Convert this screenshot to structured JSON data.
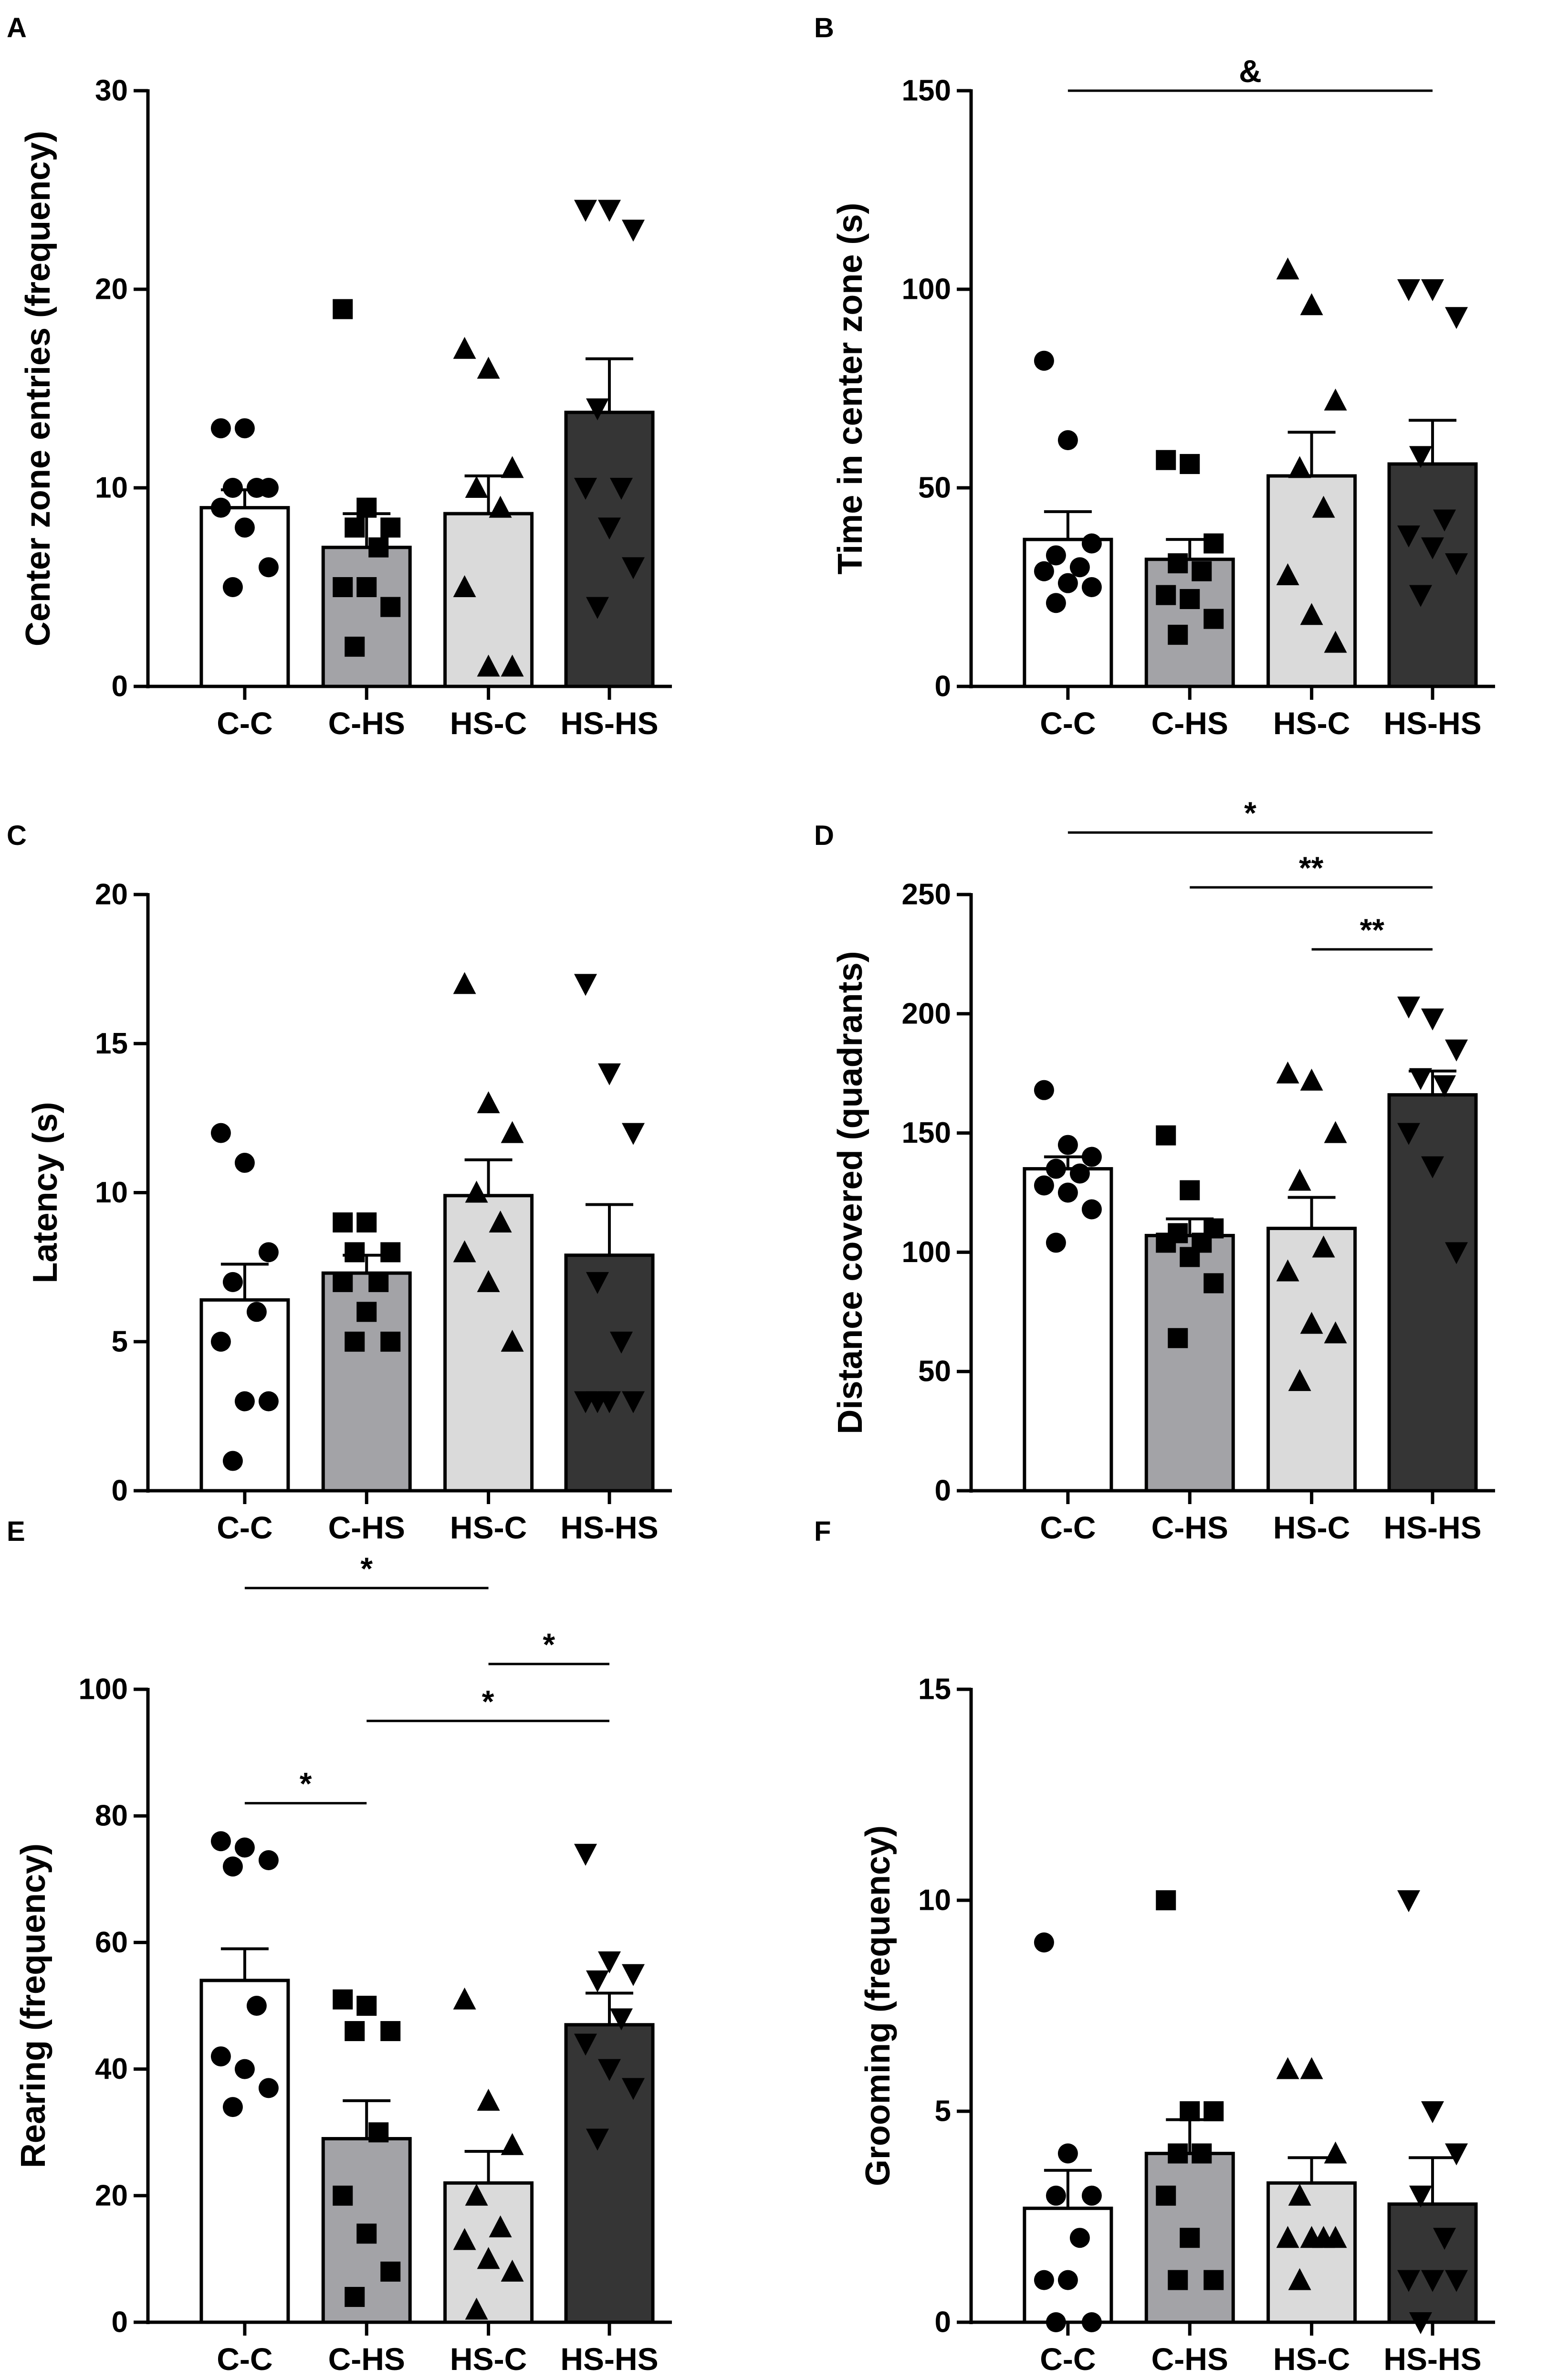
{
  "colors": {
    "C-C": "#ffffff",
    "C-HS": "#a3a3a7",
    "HS-C": "#dadada",
    "HS-HS": "#353535",
    "axis": "#000000"
  },
  "chart_data": [
    {
      "panel": "A",
      "type": "bar",
      "ylabel": "Center zone entries (frequency)",
      "ylim": [
        0,
        30
      ],
      "yticks": [
        0,
        10,
        20,
        30
      ],
      "categories": [
        "C-C",
        "C-HS",
        "HS-C",
        "HS-HS"
      ],
      "means": [
        9.0,
        7.0,
        8.7,
        13.8
      ],
      "sem": [
        0.9,
        1.7,
        1.9,
        2.7
      ],
      "points": [
        {
          "marker": "circle",
          "values": [
            13,
            13,
            10,
            10,
            10,
            9,
            8,
            6,
            5
          ]
        },
        {
          "marker": "square",
          "values": [
            19,
            9,
            8,
            8,
            7,
            5,
            5,
            4,
            2
          ]
        },
        {
          "marker": "triangle-up",
          "values": [
            17,
            16,
            11,
            10,
            9,
            5,
            1,
            1
          ]
        },
        {
          "marker": "triangle-down",
          "values": [
            24,
            24,
            23,
            14,
            10,
            10,
            8,
            6,
            4
          ]
        }
      ],
      "significance": []
    },
    {
      "panel": "B",
      "type": "bar",
      "ylabel": "Time in center zone (s)",
      "ylim": [
        0,
        150
      ],
      "yticks": [
        0,
        50,
        100,
        150
      ],
      "categories": [
        "C-C",
        "C-HS",
        "HS-C",
        "HS-HS"
      ],
      "means": [
        37,
        32,
        53,
        56
      ],
      "sem": [
        7,
        5,
        11,
        11
      ],
      "points": [
        {
          "marker": "circle",
          "values": [
            82,
            62,
            36,
            33,
            30,
            29,
            26,
            25,
            21
          ]
        },
        {
          "marker": "square",
          "values": [
            57,
            56,
            36,
            31,
            29,
            23,
            22,
            17,
            13
          ]
        },
        {
          "marker": "triangle-up",
          "values": [
            105,
            96,
            72,
            55,
            45,
            28,
            18,
            11
          ]
        },
        {
          "marker": "triangle-down",
          "values": [
            100,
            100,
            93,
            58,
            42,
            38,
            35,
            31,
            23
          ]
        }
      ],
      "significance": [
        {
          "from": 0,
          "to": 3,
          "label": "&",
          "level": 150
        }
      ]
    },
    {
      "panel": "C",
      "type": "bar",
      "ylabel": "Latency (s)",
      "ylim": [
        0,
        20
      ],
      "yticks": [
        0,
        5,
        10,
        15,
        20
      ],
      "categories": [
        "C-C",
        "C-HS",
        "HS-C",
        "HS-HS"
      ],
      "means": [
        6.4,
        7.3,
        9.9,
        7.9
      ],
      "sem": [
        1.2,
        0.6,
        1.2,
        1.7
      ],
      "points": [
        {
          "marker": "circle",
          "values": [
            12,
            11,
            8,
            7,
            6,
            5,
            3,
            3,
            1
          ]
        },
        {
          "marker": "square",
          "values": [
            9,
            9,
            8,
            8,
            7,
            7,
            6,
            5,
            5
          ]
        },
        {
          "marker": "triangle-up",
          "values": [
            17,
            13,
            12,
            10,
            9,
            8,
            7,
            5
          ]
        },
        {
          "marker": "triangle-down",
          "values": [
            17,
            14,
            12,
            7,
            5,
            3,
            3,
            3,
            3
          ]
        }
      ],
      "significance": []
    },
    {
      "panel": "D",
      "type": "bar",
      "ylabel": "Distance covered (quadrants)",
      "ylim": [
        0,
        250
      ],
      "yticks": [
        0,
        50,
        100,
        150,
        200,
        250
      ],
      "categories": [
        "C-C",
        "C-HS",
        "HS-C",
        "HS-HS"
      ],
      "means": [
        135,
        107,
        110,
        166
      ],
      "sem": [
        5,
        7,
        13,
        10
      ],
      "points": [
        {
          "marker": "circle",
          "values": [
            168,
            145,
            140,
            135,
            133,
            128,
            125,
            118,
            104
          ]
        },
        {
          "marker": "square",
          "values": [
            149,
            126,
            110,
            108,
            104,
            104,
            98,
            87,
            64
          ]
        },
        {
          "marker": "triangle-up",
          "values": [
            175,
            172,
            150,
            130,
            102,
            92,
            70,
            66,
            46
          ]
        },
        {
          "marker": "triangle-down",
          "values": [
            203,
            198,
            185,
            173,
            170,
            150,
            136,
            100
          ]
        }
      ],
      "significance": [
        {
          "from": 0,
          "to": 3,
          "label": "*",
          "level": 276
        },
        {
          "from": 1,
          "to": 3,
          "label": "**",
          "level": 253
        },
        {
          "from": 2,
          "to": 3,
          "label": "**",
          "level": 227
        }
      ]
    },
    {
      "panel": "E",
      "type": "bar",
      "ylabel": "Rearing (frequency)",
      "ylim": [
        0,
        100
      ],
      "yticks": [
        0,
        20,
        40,
        60,
        80,
        100
      ],
      "categories": [
        "C-C",
        "C-HS",
        "HS-C",
        "HS-HS"
      ],
      "means": [
        54,
        29,
        22,
        47
      ],
      "sem": [
        5,
        6,
        5,
        5
      ],
      "points": [
        {
          "marker": "circle",
          "values": [
            76,
            75,
            73,
            72,
            50,
            42,
            40,
            37,
            34
          ]
        },
        {
          "marker": "square",
          "values": [
            51,
            50,
            46,
            46,
            30,
            20,
            14,
            8,
            4
          ]
        },
        {
          "marker": "triangle-up",
          "values": [
            51,
            35,
            28,
            20,
            15,
            13,
            10,
            8,
            2
          ]
        },
        {
          "marker": "triangle-down",
          "values": [
            74,
            57,
            55,
            54,
            48,
            44,
            40,
            37,
            29
          ]
        }
      ],
      "significance": [
        {
          "from": 0,
          "to": 2,
          "label": "*",
          "level": 116
        },
        {
          "from": 2,
          "to": 3,
          "label": "*",
          "level": 104
        },
        {
          "from": 1,
          "to": 3,
          "label": "*",
          "level": 95
        },
        {
          "from": 0,
          "to": 1,
          "label": "*",
          "level": 82
        }
      ]
    },
    {
      "panel": "F",
      "type": "bar",
      "ylabel": "Grooming (frequency)",
      "ylim": [
        0,
        15
      ],
      "yticks": [
        0,
        5,
        10,
        15
      ],
      "categories": [
        "C-C",
        "C-HS",
        "HS-C",
        "HS-HS"
      ],
      "means": [
        2.7,
        4.0,
        3.3,
        2.8
      ],
      "sem": [
        0.9,
        0.8,
        0.6,
        1.1
      ],
      "points": [
        {
          "marker": "circle",
          "values": [
            9,
            4,
            3,
            3,
            2,
            1,
            1,
            0,
            0
          ]
        },
        {
          "marker": "square",
          "values": [
            10,
            5,
            5,
            4,
            4,
            3,
            2,
            1,
            1
          ]
        },
        {
          "marker": "triangle-up",
          "values": [
            6,
            6,
            4,
            3,
            2,
            2,
            2,
            2,
            1
          ]
        },
        {
          "marker": "triangle-down",
          "values": [
            10,
            5,
            4,
            3,
            2,
            1,
            1,
            1,
            0
          ]
        }
      ],
      "significance": []
    }
  ]
}
